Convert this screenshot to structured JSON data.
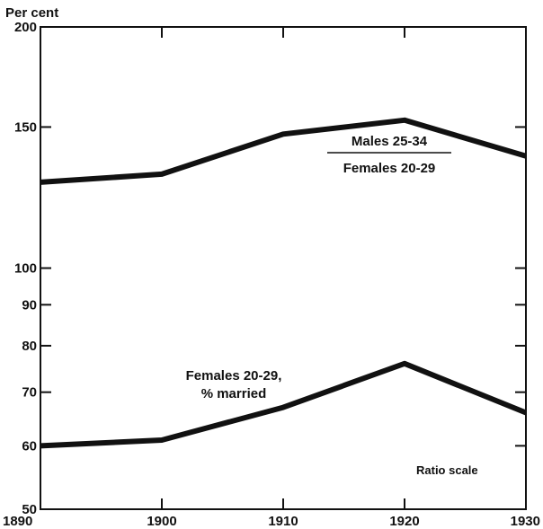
{
  "chart_data": {
    "type": "line",
    "ylabel": "Per cent",
    "scale_note": "Ratio scale",
    "y_scale": "log",
    "ylim": [
      50,
      200
    ],
    "xlim": [
      1890,
      1930
    ],
    "x_ticks": [
      1890,
      1900,
      1910,
      1920,
      1930
    ],
    "y_ticks": [
      50,
      60,
      70,
      80,
      90,
      100,
      150,
      200
    ],
    "grid": false,
    "series": [
      {
        "label_lines": [
          "Males 25-34",
          "Females 20-29"
        ],
        "x": [
          1890,
          1900,
          1910,
          1920,
          1930
        ],
        "values": [
          128,
          131,
          147,
          153,
          138
        ]
      },
      {
        "label_lines": [
          "Females 20-29,",
          "% married"
        ],
        "x": [
          1890,
          1900,
          1910,
          1920,
          1930
        ],
        "values": [
          60,
          61,
          67,
          76,
          66
        ]
      }
    ]
  },
  "colors": {
    "line": "#111111",
    "axis": "#111111"
  }
}
